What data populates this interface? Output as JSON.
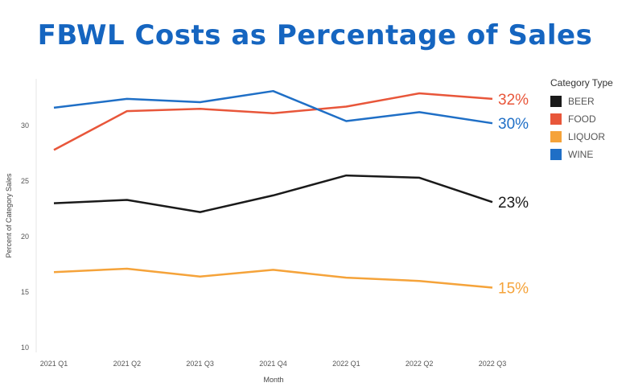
{
  "title": "FBWL Costs as Percentage of Sales",
  "chart_data": {
    "type": "line",
    "title": "FBWL Costs as Percentage of Sales",
    "xlabel": "Month",
    "ylabel": "Percent of Category Sales",
    "categories": [
      "2021 Q1",
      "2021 Q2",
      "2021 Q3",
      "2021 Q4",
      "2022 Q1",
      "2022 Q2",
      "2022 Q3"
    ],
    "yticks": [
      10,
      15,
      20,
      25,
      30
    ],
    "ylim": [
      10,
      34
    ],
    "legend_title": "Category Type",
    "legend_position": "right",
    "series": [
      {
        "name": "BEER",
        "color": "#1a1a1a",
        "end_label": "23%",
        "values": [
          23.0,
          23.3,
          22.2,
          23.7,
          25.5,
          25.3,
          23.1
        ]
      },
      {
        "name": "FOOD",
        "color": "#e8563a",
        "end_label": "32%",
        "values": [
          27.8,
          31.3,
          31.5,
          31.1,
          31.7,
          32.9,
          32.4
        ]
      },
      {
        "name": "LIQUOR",
        "color": "#f5a33a",
        "end_label": "15%",
        "values": [
          16.8,
          17.1,
          16.4,
          17.0,
          16.3,
          16.0,
          15.4
        ]
      },
      {
        "name": "WINE",
        "color": "#1f6fc6",
        "end_label": "30%",
        "values": [
          31.6,
          32.4,
          32.1,
          33.1,
          30.4,
          31.2,
          30.2
        ]
      }
    ]
  }
}
